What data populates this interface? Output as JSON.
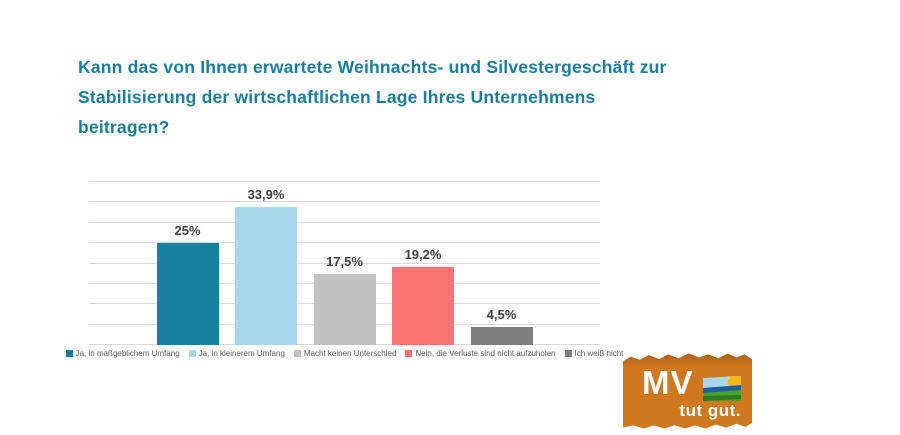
{
  "title": {
    "lines": [
      "Kann das von Ihnen erwartete Weihnachts- und Silvestergeschäft zur",
      "Stabilisierung der wirtschaftlichen Lage Ihres Unternehmens",
      "beitragen?"
    ],
    "color": "#1a7f9e"
  },
  "chart_data": {
    "type": "bar",
    "title": "",
    "xlabel": "",
    "ylabel": "",
    "categories": [
      "Ja, in maßgeblichem Umfang",
      "Ja, in kleinerem Umfang",
      "Macht keinen Unterschied",
      "Nein, die Verluste sind nicht aufzuholen",
      "Ich weiß nicht"
    ],
    "values": [
      25,
      33.9,
      17.5,
      19.2,
      4.5
    ],
    "value_labels": [
      "25%",
      "33,9%",
      "17,5%",
      "19,2%",
      "4,5%"
    ],
    "colors": [
      "#16809f",
      "#a8d7f0",
      "#c1c1c1",
      "#f87474",
      "#7f7f7f"
    ],
    "ylim": [
      0,
      40
    ],
    "gridline_step": 5,
    "grid": true,
    "axis_tick_labels_visible": false,
    "legend_position": "bottom"
  },
  "logo": {
    "text_mv": "MV",
    "text_tagline": "tut gut.",
    "bg_color": "#d0781e"
  }
}
